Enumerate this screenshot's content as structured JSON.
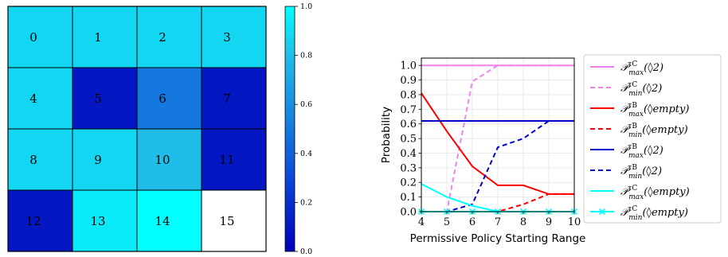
{
  "chart_data": [
    {
      "type": "heatmap",
      "rows": 4,
      "cols": 4,
      "labels": [
        "0",
        "1",
        "2",
        "3",
        "4",
        "5",
        "6",
        "7",
        "8",
        "9",
        "10",
        "11",
        "12",
        "13",
        "14",
        "15"
      ],
      "values": [
        0.85,
        0.85,
        0.85,
        0.85,
        0.85,
        0.08,
        0.45,
        0.08,
        0.85,
        0.85,
        0.75,
        0.08,
        0.08,
        0.92,
        1.0,
        null
      ],
      "empty_color": "#ffffff",
      "colorbar": {
        "min": 0.0,
        "max": 1.0,
        "ticks": [
          "0.0",
          "0.2",
          "0.4",
          "0.6",
          "0.8",
          "1.0"
        ],
        "colors": [
          "#0000b8",
          "#0b48d8",
          "#1784df",
          "#20bde9",
          "#00ffff"
        ]
      }
    },
    {
      "type": "line",
      "xlabel": "Permissive Policy Starting Range",
      "ylabel": "Probability",
      "xlim": [
        4,
        10
      ],
      "ylim": [
        0,
        1.05
      ],
      "grid": true,
      "legend_placement": "outside-right",
      "xticks": [
        "4",
        "5",
        "6",
        "7",
        "8",
        "9",
        "10"
      ],
      "yticks": [
        "0.0",
        "0.1",
        "0.2",
        "0.3",
        "0.4",
        "0.5",
        "0.6",
        "0.7",
        "0.8",
        "0.9",
        "1.0"
      ],
      "series": [
        {
          "name": "𝒫^{τC}_{max}(◊2)",
          "color": "#ee82ee",
          "dash": "solid",
          "marker": "none",
          "x": [
            4,
            5,
            6,
            7,
            8,
            9,
            10
          ],
          "y": [
            1.0,
            1.0,
            1.0,
            1.0,
            1.0,
            1.0,
            1.0
          ]
        },
        {
          "name": "𝒫^{τC}_{min}(◊2)",
          "color": "#ee82ee",
          "dash": "dashed",
          "marker": "none",
          "x": [
            4,
            5,
            6,
            7,
            8,
            9,
            10
          ],
          "y": [
            0.0,
            0.0,
            0.89,
            1.0,
            1.0,
            1.0,
            1.0
          ]
        },
        {
          "name": "𝒫^{τB}_{max}(◊empty)",
          "color": "#ff0000",
          "dash": "solid",
          "marker": "none",
          "x": [
            4,
            5,
            6,
            7,
            8,
            9,
            10
          ],
          "y": [
            0.81,
            0.55,
            0.31,
            0.18,
            0.18,
            0.12,
            0.12
          ]
        },
        {
          "name": "𝒫^{τB}_{min}(◊empty)",
          "color": "#ff0000",
          "dash": "dashed",
          "marker": "none",
          "x": [
            4,
            5,
            6,
            7,
            8,
            9,
            10
          ],
          "y": [
            0.0,
            0.0,
            0.0,
            0.0,
            0.05,
            0.12,
            0.12
          ]
        },
        {
          "name": "𝒫^{τB}_{max}(◊2)",
          "color": "#0000cc",
          "dash": "solid",
          "marker": "none",
          "x": [
            4,
            5,
            6,
            7,
            8,
            9,
            10
          ],
          "y": [
            0.62,
            0.62,
            0.62,
            0.62,
            0.62,
            0.62,
            0.62
          ]
        },
        {
          "name": "𝒫^{τB}_{min}(◊2)",
          "color": "#0000cc",
          "dash": "dashed",
          "marker": "none",
          "x": [
            4,
            5,
            6,
            7,
            8,
            9,
            10
          ],
          "y": [
            0.0,
            0.0,
            0.05,
            0.44,
            0.5,
            0.62,
            0.62
          ]
        },
        {
          "name": "𝒫^{τC}_{max}(◊empty)",
          "color": "#00ffff",
          "dash": "solid",
          "marker": "none",
          "x": [
            4,
            5,
            6,
            7,
            8,
            9,
            10
          ],
          "y": [
            0.19,
            0.1,
            0.04,
            0.0,
            0.0,
            0.0,
            0.0
          ]
        },
        {
          "name": "𝒫^{τC}_{min}(◊empty)",
          "color": "#00ffff",
          "dash": "solid",
          "marker": "x",
          "x": [
            4,
            5,
            6,
            7,
            8,
            9,
            10
          ],
          "y": [
            0.0,
            0.0,
            0.0,
            0.0,
            0.0,
            0.0,
            0.0
          ]
        }
      ]
    }
  ]
}
